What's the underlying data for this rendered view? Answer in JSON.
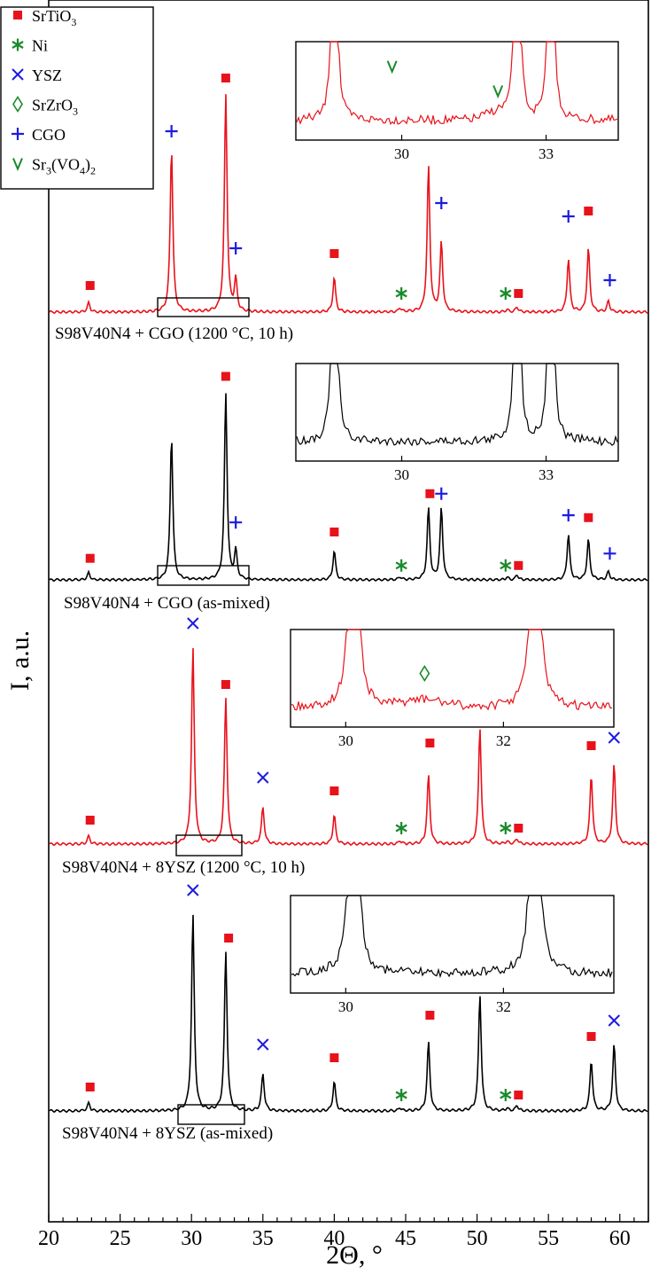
{
  "colors": {
    "red": "#e8121b",
    "black": "#000000",
    "blue": "#1c1ce0",
    "green": "#1a8a2a"
  },
  "legend": {
    "entries": [
      {
        "label": "SrTiO",
        "sub": "3",
        "marker": "square",
        "color": "#e8121b"
      },
      {
        "label": "Ni",
        "marker": "asterisk",
        "color": "#1a8a2a"
      },
      {
        "label": "YSZ",
        "marker": "x",
        "color": "#1c1ce0"
      },
      {
        "label": "SrZrO",
        "sub": "3",
        "marker": "diamond",
        "color": "#1a8a2a"
      },
      {
        "label": "CGO",
        "marker": "plus",
        "color": "#1c1ce0"
      },
      {
        "label": "Sr",
        "sub": "3",
        "mid": "(VO",
        "sub2": "4",
        "end": ")",
        "sub3": "2",
        "marker": "v",
        "color": "#1a8a2a"
      }
    ]
  },
  "chart_data": {
    "type": "line",
    "xlabel": "2Θ, °",
    "ylabel": "I, a.u.",
    "xlim": [
      20,
      62
    ],
    "xticks": [
      20,
      25,
      30,
      35,
      40,
      45,
      50,
      55,
      60
    ],
    "series": [
      {
        "name": "S98V40N4 + CGO (1200 °C, 10 h)",
        "color": "#e8121b",
        "peaks": [
          [
            22.8,
            0.035
          ],
          [
            28.6,
            0.62
          ],
          [
            32.4,
            0.82
          ],
          [
            33.1,
            0.12
          ],
          [
            40.0,
            0.13
          ],
          [
            44.6,
            0.015
          ],
          [
            46.6,
            0.55
          ],
          [
            47.5,
            0.26
          ],
          [
            52.1,
            0.01
          ],
          [
            52.8,
            0.02
          ],
          [
            56.4,
            0.2
          ],
          [
            57.8,
            0.24
          ],
          [
            59.2,
            0.04
          ]
        ],
        "markers": [
          {
            "t": "square",
            "x": 22.9,
            "h": 0.1
          },
          {
            "t": "plus",
            "x": 28.6,
            "h": 0.68
          },
          {
            "t": "square",
            "x": 32.4,
            "h": 0.88
          },
          {
            "t": "plus",
            "x": 33.1,
            "h": 0.24
          },
          {
            "t": "square",
            "x": 40.0,
            "h": 0.22
          },
          {
            "t": "asterisk",
            "x": 44.7,
            "h": 0.07
          },
          {
            "t": "square",
            "x": 46.7,
            "h": 0.69
          },
          {
            "t": "plus",
            "x": 47.5,
            "h": 0.41
          },
          {
            "t": "asterisk",
            "x": 52.0,
            "h": 0.07
          },
          {
            "t": "square",
            "x": 52.9,
            "h": 0.07
          },
          {
            "t": "plus",
            "x": 56.4,
            "h": 0.36
          },
          {
            "t": "square",
            "x": 57.8,
            "h": 0.38
          },
          {
            "t": "plus",
            "x": 59.3,
            "h": 0.12
          }
        ],
        "inset": {
          "xlim": [
            27.8,
            34.5
          ],
          "ticks": [
            30,
            33
          ],
          "peaks": [
            28.6,
            32.4,
            33.1
          ],
          "bump": {
            "x": 32.0,
            "h": 0.2
          },
          "markers": [
            {
              "t": "v",
              "x": 29.8,
              "yfrac": 0.25
            },
            {
              "t": "v",
              "x": 32.0,
              "yfrac": 0.5
            }
          ]
        }
      },
      {
        "name": "S98V40N4 + CGO (as-mixed)",
        "color": "#000000",
        "peaks": [
          [
            22.8,
            0.03
          ],
          [
            28.6,
            0.6
          ],
          [
            32.4,
            0.78
          ],
          [
            33.1,
            0.12
          ],
          [
            40.0,
            0.12
          ],
          [
            44.6,
            0.012
          ],
          [
            46.6,
            0.3
          ],
          [
            47.5,
            0.3
          ],
          [
            52.1,
            0.01
          ],
          [
            52.8,
            0.02
          ],
          [
            56.4,
            0.19
          ],
          [
            57.8,
            0.17
          ],
          [
            59.2,
            0.035
          ]
        ],
        "markers": [
          {
            "t": "square",
            "x": 22.9,
            "h": 0.09
          },
          {
            "t": "square",
            "x": 32.4,
            "h": 0.85
          },
          {
            "t": "plus",
            "x": 33.1,
            "h": 0.24
          },
          {
            "t": "square",
            "x": 40.0,
            "h": 0.2
          },
          {
            "t": "asterisk",
            "x": 44.7,
            "h": 0.06
          },
          {
            "t": "square",
            "x": 46.7,
            "h": 0.36
          },
          {
            "t": "plus",
            "x": 47.5,
            "h": 0.36
          },
          {
            "t": "asterisk",
            "x": 52.0,
            "h": 0.06
          },
          {
            "t": "square",
            "x": 52.9,
            "h": 0.06
          },
          {
            "t": "plus",
            "x": 56.4,
            "h": 0.27
          },
          {
            "t": "square",
            "x": 57.8,
            "h": 0.26
          },
          {
            "t": "plus",
            "x": 59.3,
            "h": 0.11
          }
        ],
        "inset": {
          "xlim": [
            27.8,
            34.5
          ],
          "ticks": [
            30,
            33
          ],
          "peaks": [
            28.6,
            32.4,
            33.1
          ],
          "bump": {
            "x": 32.0,
            "h": 0.0
          },
          "markers": []
        }
      },
      {
        "name": "S98V40N4 + 8YSZ (1200 °C, 10 h)",
        "color": "#e8121b",
        "peaks": [
          [
            22.8,
            0.03
          ],
          [
            30.1,
            0.74
          ],
          [
            32.4,
            0.55
          ],
          [
            35.0,
            0.14
          ],
          [
            40.0,
            0.11
          ],
          [
            44.6,
            0.012
          ],
          [
            46.6,
            0.26
          ],
          [
            50.2,
            0.44
          ],
          [
            52.1,
            0.01
          ],
          [
            52.8,
            0.02
          ],
          [
            58.0,
            0.26
          ],
          [
            59.6,
            0.3
          ]
        ],
        "markers": [
          {
            "t": "square",
            "x": 22.9,
            "h": 0.09
          },
          {
            "t": "x",
            "x": 30.1,
            "h": 0.83
          },
          {
            "t": "square",
            "x": 32.4,
            "h": 0.6
          },
          {
            "t": "x",
            "x": 35.0,
            "h": 0.25
          },
          {
            "t": "square",
            "x": 40.0,
            "h": 0.2
          },
          {
            "t": "asterisk",
            "x": 44.7,
            "h": 0.06
          },
          {
            "t": "square",
            "x": 46.7,
            "h": 0.38
          },
          {
            "t": "x",
            "x": 50.2,
            "h": 0.54
          },
          {
            "t": "asterisk",
            "x": 52.0,
            "h": 0.06
          },
          {
            "t": "square",
            "x": 52.9,
            "h": 0.06
          },
          {
            "t": "square",
            "x": 58.0,
            "h": 0.37
          },
          {
            "t": "x",
            "x": 59.6,
            "h": 0.4
          }
        ],
        "inset": {
          "xlim": [
            29.3,
            33.4
          ],
          "ticks": [
            30,
            32
          ],
          "peaks": [
            30.1,
            32.4
          ],
          "bump": {
            "x": 31.0,
            "h": 0.2
          },
          "markers": [
            {
              "t": "diamond",
              "x": 31.0,
              "yfrac": 0.45
            }
          ]
        }
      },
      {
        "name": "S98V40N4 + 8YSZ (as-mixed)",
        "color": "#000000",
        "peaks": [
          [
            22.8,
            0.03
          ],
          [
            30.1,
            0.74
          ],
          [
            32.4,
            0.6
          ],
          [
            35.0,
            0.14
          ],
          [
            40.0,
            0.11
          ],
          [
            44.6,
            0.012
          ],
          [
            46.6,
            0.26
          ],
          [
            50.2,
            0.44
          ],
          [
            52.1,
            0.01
          ],
          [
            52.8,
            0.02
          ],
          [
            58.0,
            0.19
          ],
          [
            59.6,
            0.25
          ]
        ],
        "markers": [
          {
            "t": "square",
            "x": 22.9,
            "h": 0.09
          },
          {
            "t": "x",
            "x": 30.1,
            "h": 0.83
          },
          {
            "t": "square",
            "x": 32.6,
            "h": 0.65
          },
          {
            "t": "x",
            "x": 35.0,
            "h": 0.25
          },
          {
            "t": "square",
            "x": 40.0,
            "h": 0.2
          },
          {
            "t": "asterisk",
            "x": 44.7,
            "h": 0.06
          },
          {
            "t": "square",
            "x": 46.7,
            "h": 0.36
          },
          {
            "t": "x",
            "x": 50.2,
            "h": 0.54
          },
          {
            "t": "asterisk",
            "x": 52.0,
            "h": 0.06
          },
          {
            "t": "square",
            "x": 52.9,
            "h": 0.06
          },
          {
            "t": "square",
            "x": 58.0,
            "h": 0.28
          },
          {
            "t": "x",
            "x": 59.6,
            "h": 0.34
          }
        ],
        "inset": {
          "xlim": [
            29.3,
            33.4
          ],
          "ticks": [
            30,
            32
          ],
          "peaks": [
            30.1,
            32.4
          ],
          "bump": {
            "x": 31.0,
            "h": 0.0
          },
          "markers": []
        }
      }
    ]
  }
}
